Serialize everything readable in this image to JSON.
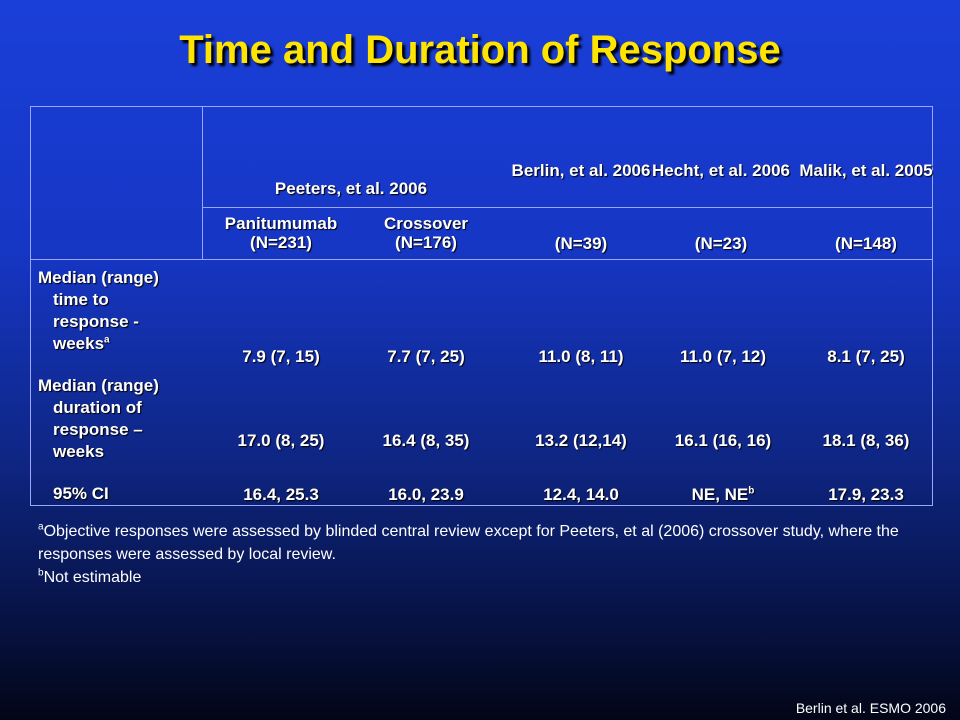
{
  "title": "Time and Duration of Response",
  "table": {
    "studies": {
      "peeters": "Peeters, et al. 2006",
      "berlin": "Berlin, et al. 2006",
      "hecht": "Hecht, et al. 2006",
      "malik": "Malik, et al. 2005"
    },
    "subheaders": {
      "panitumumab": "Panitumumab (N=231)",
      "crossover": "Crossover (N=176)",
      "berlin_n": "(N=39)",
      "hecht_n": "(N=23)",
      "malik_n": "(N=148)"
    },
    "rows": {
      "time_to_response": {
        "label_line1": "Median (range)",
        "label_line2": "time to",
        "label_line3": "response -",
        "label_line4": "weeks",
        "label_sup": "a",
        "values": [
          "7.9 (7, 15)",
          "7.7 (7, 25)",
          "11.0 (8, 11)",
          "11.0 (7, 12)",
          "8.1 (7, 25)"
        ]
      },
      "duration": {
        "label_line1": "Median (range)",
        "label_line2": "duration of",
        "label_line3": "response –",
        "label_line4": "weeks",
        "values": [
          "17.0 (8, 25)",
          "16.4 (8, 35)",
          "13.2 (12,14)",
          "16.1 (16, 16)",
          "18.1 (8, 36)"
        ]
      },
      "ci": {
        "label": "95% CI",
        "values": [
          "16.4, 25.3",
          "16.0, 23.9",
          "12.4, 14.0",
          "NE, NE",
          "17.9, 23.3"
        ],
        "hecht_sup": "b"
      }
    }
  },
  "footnotes": {
    "a_sup": "a",
    "a_text": "Objective responses were assessed by blinded central review except for Peeters, et al (2006) crossover study, where the responses were assessed by local review.",
    "b_sup": "b",
    "b_text": "Not estimable"
  },
  "source": "Berlin et al. ESMO 2006",
  "colors": {
    "title": "#ffe400",
    "background_top": "#1a3fd8",
    "background_bottom": "#020617",
    "rule": "#9aa6ff"
  }
}
